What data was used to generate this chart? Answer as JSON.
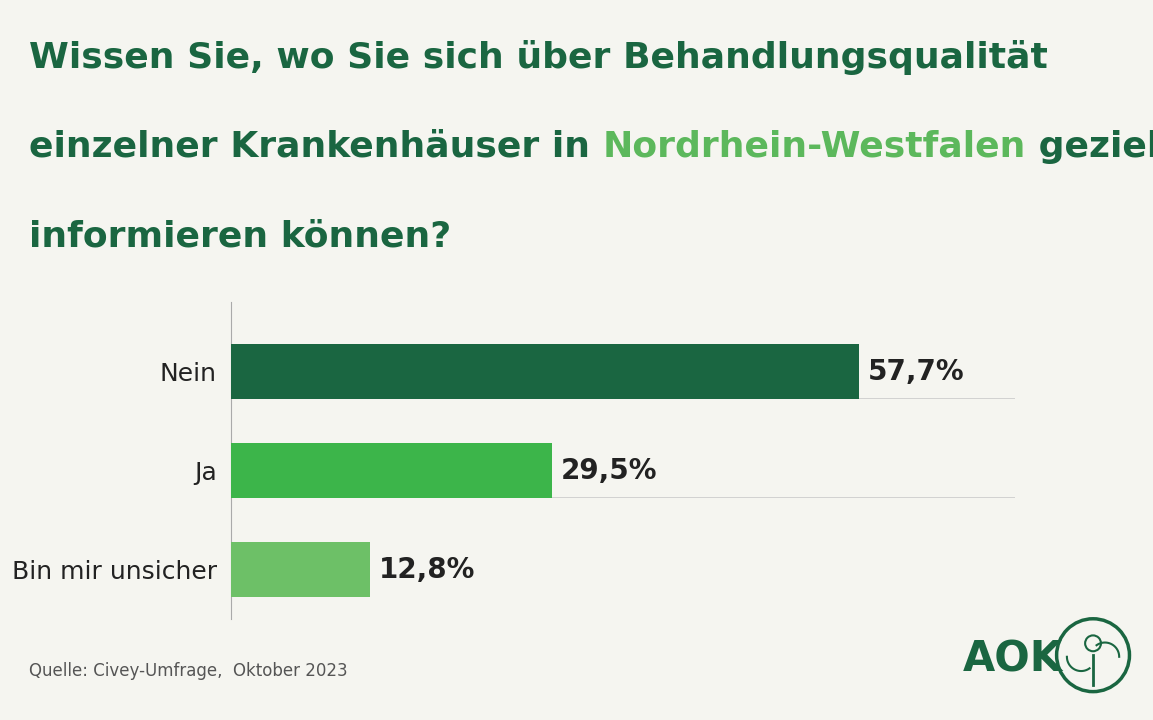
{
  "categories": [
    "Nein",
    "Ja",
    "Bin mir unsicher"
  ],
  "values": [
    57.7,
    29.5,
    12.8
  ],
  "labels": [
    "57,7%",
    "29,5%",
    "12,8%"
  ],
  "bar_colors": [
    "#1a6641",
    "#3cb54a",
    "#6dc067"
  ],
  "background_color": "#f5f5f0",
  "title_line1": "Wissen Sie, wo Sie sich über Behandlungsqualität",
  "title_line2_part1": "einzelner Krankenhäuser in ",
  "title_line2_highlight": "Nordrhein-Westfalen",
  "title_line2_part2": " gezielt",
  "title_line3": "informieren können?",
  "title_color": "#1a6641",
  "highlight_color": "#5cb85c",
  "source_text": "Quelle: Civey-Umfrage,  Oktober 2023",
  "source_color": "#555555",
  "label_fontsize": 20,
  "title_fontsize": 26,
  "ylabel_fontsize": 18,
  "source_fontsize": 12,
  "xlim": [
    0,
    72
  ]
}
